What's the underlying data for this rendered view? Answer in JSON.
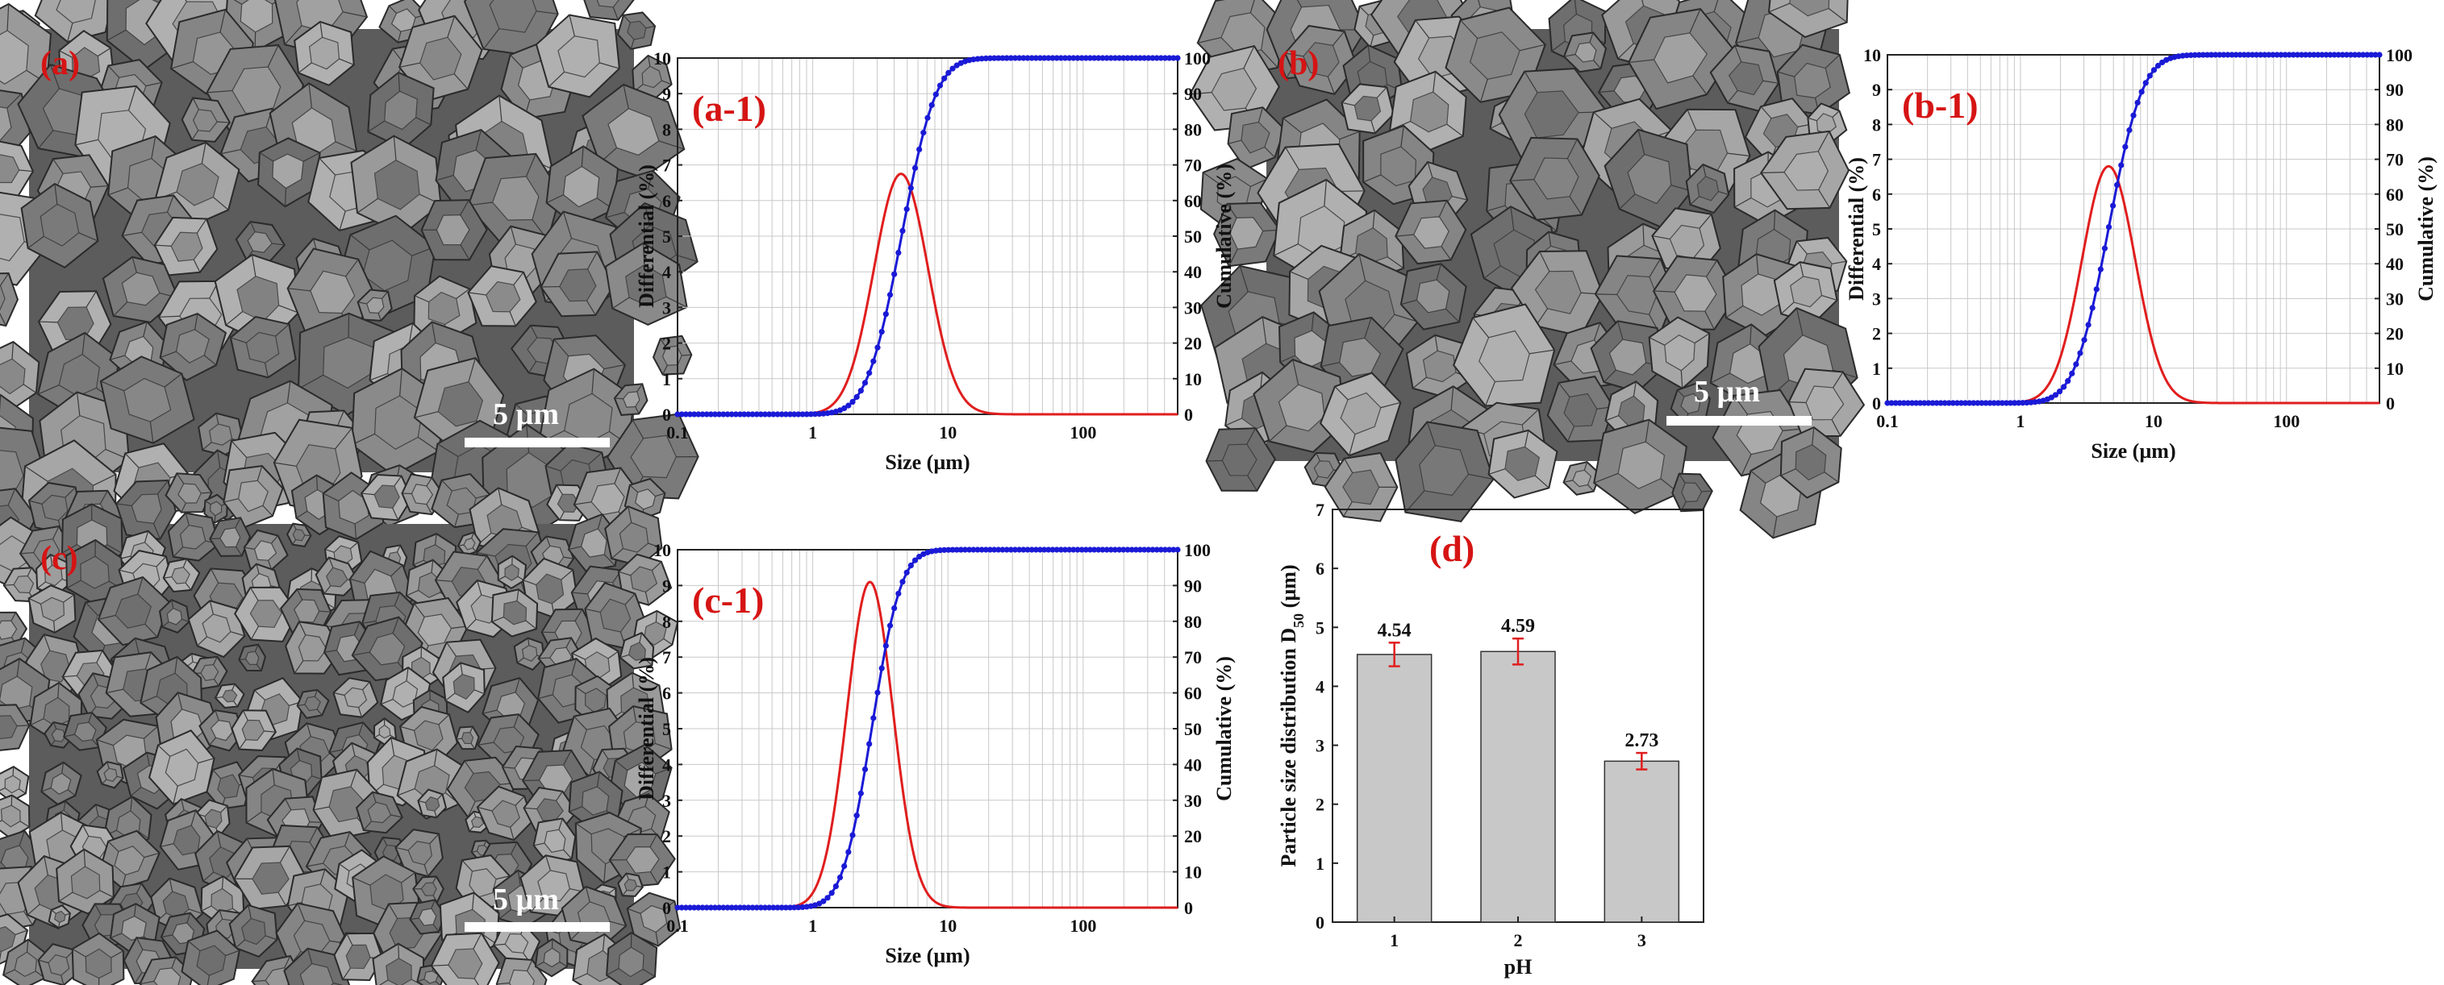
{
  "sem_images": [
    {
      "id": "a",
      "label": "(a)",
      "scale_bar": "5 µm",
      "crystal_size": "large"
    },
    {
      "id": "b",
      "label": "(b)",
      "scale_bar": "5 µm",
      "crystal_size": "large"
    },
    {
      "id": "c",
      "label": "(c)",
      "scale_bar": "5 µm",
      "crystal_size": "small"
    }
  ],
  "chart_data": [
    {
      "id": "a-1",
      "type": "line",
      "panel_label": "(a-1)",
      "xlabel": "Size (µm)",
      "ylabel_left": "Differential (%)",
      "ylabel_right": "Cumulative (%)",
      "x_scale": "log",
      "xlim": [
        0.1,
        500
      ],
      "x_ticks": [
        "0.1",
        "1",
        "10",
        "100"
      ],
      "ylim_left": [
        0,
        10
      ],
      "ylim_right": [
        0,
        100
      ],
      "y_ticks_left": [
        "0",
        "1",
        "2",
        "3",
        "4",
        "5",
        "6",
        "7",
        "8",
        "9",
        "10"
      ],
      "y_ticks_right": [
        "0",
        "10",
        "20",
        "30",
        "40",
        "50",
        "60",
        "70",
        "80",
        "90",
        "100"
      ],
      "series": [
        {
          "name": "Differential",
          "axis": "left",
          "color": "#e01e1e",
          "model": "lognormal",
          "peak": 6.75,
          "mode_um": 4.5,
          "sigma_log10": 0.2
        },
        {
          "name": "Cumulative",
          "axis": "right",
          "color": "#1a1ad6",
          "marker": "dot",
          "model": "lognormal_cdf",
          "d50_um": 4.54,
          "sigma_log10": 0.2
        }
      ]
    },
    {
      "id": "b-1",
      "type": "line",
      "panel_label": "(b-1)",
      "xlabel": "Size (µm)",
      "ylabel_left": "Differential (%)",
      "ylabel_right": "Cumulative (%)",
      "x_scale": "log",
      "xlim": [
        0.1,
        500
      ],
      "x_ticks": [
        "0.1",
        "1",
        "10",
        "100"
      ],
      "ylim_left": [
        0,
        10
      ],
      "ylim_right": [
        0,
        100
      ],
      "y_ticks_left": [
        "0",
        "1",
        "2",
        "3",
        "4",
        "5",
        "6",
        "7",
        "8",
        "9",
        "10"
      ],
      "y_ticks_right": [
        "0",
        "10",
        "20",
        "30",
        "40",
        "50",
        "60",
        "70",
        "80",
        "90",
        "100"
      ],
      "series": [
        {
          "name": "Differential",
          "axis": "left",
          "color": "#e01e1e",
          "model": "lognormal",
          "peak": 6.8,
          "mode_um": 4.6,
          "sigma_log10": 0.2
        },
        {
          "name": "Cumulative",
          "axis": "right",
          "color": "#1a1ad6",
          "marker": "dot",
          "model": "lognormal_cdf",
          "d50_um": 4.59,
          "sigma_log10": 0.2
        }
      ]
    },
    {
      "id": "c-1",
      "type": "line",
      "panel_label": "(c-1)",
      "xlabel": "Size (µm)",
      "ylabel_left": "Differential (%)",
      "ylabel_right": "Cumulative (%)",
      "x_scale": "log",
      "xlim": [
        0.1,
        500
      ],
      "x_ticks": [
        "0.1",
        "1",
        "10",
        "100"
      ],
      "ylim_left": [
        0,
        10
      ],
      "ylim_right": [
        0,
        100
      ],
      "y_ticks_left": [
        "0",
        "1",
        "2",
        "3",
        "4",
        "5",
        "6",
        "7",
        "8",
        "9",
        "10"
      ],
      "y_ticks_right": [
        "0",
        "10",
        "20",
        "30",
        "40",
        "50",
        "60",
        "70",
        "80",
        "90",
        "100"
      ],
      "series": [
        {
          "name": "Differential",
          "axis": "left",
          "color": "#e01e1e",
          "model": "lognormal",
          "peak": 9.1,
          "mode_um": 2.65,
          "sigma_log10": 0.17
        },
        {
          "name": "Cumulative",
          "axis": "right",
          "color": "#1a1ad6",
          "marker": "dot",
          "model": "lognormal_cdf",
          "d50_um": 2.73,
          "sigma_log10": 0.17
        }
      ]
    },
    {
      "id": "d",
      "type": "bar",
      "panel_label": "(d)",
      "xlabel": "pH",
      "ylabel": "Particle size distribution D",
      "ylabel_sub": "50",
      "ylabel_unit": " (µm)",
      "categories": [
        "1",
        "2",
        "3"
      ],
      "values": [
        4.54,
        4.59,
        2.73
      ],
      "value_labels": [
        "4.54",
        "4.59",
        "2.73"
      ],
      "errors": [
        0.2,
        0.22,
        0.14
      ],
      "ylim": [
        0,
        7
      ],
      "y_ticks": [
        "0",
        "1",
        "2",
        "3",
        "4",
        "5",
        "6",
        "7"
      ],
      "bar_color": "#c8c8c8",
      "error_color": "#e01e1e"
    }
  ]
}
